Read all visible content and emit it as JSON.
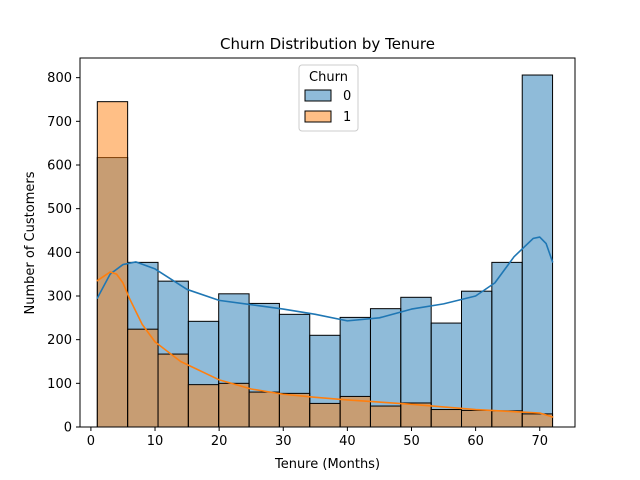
{
  "chart_data": {
    "type": "bar",
    "subtype": "overlaid-histogram-with-kde",
    "title": "Churn Distribution by Tenure",
    "xlabel": "Tenure (Months)",
    "ylabel": "Number of Customers",
    "xlim": [
      -1.7,
      75.5
    ],
    "ylim": [
      0,
      845
    ],
    "x_ticks": [
      0,
      10,
      20,
      30,
      40,
      50,
      60,
      70
    ],
    "y_ticks": [
      0,
      100,
      200,
      300,
      400,
      500,
      600,
      700,
      800
    ],
    "grid": false,
    "legend": {
      "title": "Churn",
      "placement": "top-center"
    },
    "bin_edges": [
      1.0,
      5.73,
      10.47,
      15.2,
      19.93,
      24.67,
      29.4,
      34.13,
      38.87,
      43.6,
      48.33,
      53.07,
      57.8,
      62.53,
      67.27,
      72.0
    ],
    "series": [
      {
        "name": "0",
        "color": "#1f77b4",
        "values": [
          617,
          377,
          334,
          242,
          305,
          283,
          258,
          210,
          251,
          271,
          297,
          238,
          311,
          377,
          806
        ],
        "kde_x": [
          1,
          3,
          5,
          7,
          10,
          15,
          20,
          25,
          30,
          35,
          40,
          45,
          50,
          55,
          60,
          63,
          66,
          69,
          70,
          71,
          72
        ],
        "kde_y": [
          295,
          350,
          372,
          378,
          362,
          315,
          290,
          280,
          270,
          258,
          243,
          250,
          270,
          282,
          300,
          330,
          390,
          432,
          435,
          420,
          378
        ]
      },
      {
        "name": "1",
        "color": "#ff7f0e",
        "values": [
          745,
          224,
          167,
          97,
          100,
          80,
          77,
          54,
          70,
          48,
          55,
          40,
          38,
          37,
          30
        ],
        "kde_x": [
          1,
          2,
          3,
          4,
          5,
          6,
          8,
          10,
          14,
          20,
          25,
          30,
          35,
          40,
          45,
          50,
          55,
          60,
          65,
          70,
          72
        ],
        "kde_y": [
          335,
          345,
          355,
          350,
          330,
          295,
          235,
          195,
          150,
          108,
          87,
          75,
          68,
          62,
          57,
          52,
          46,
          40,
          36,
          32,
          23
        ]
      }
    ]
  }
}
